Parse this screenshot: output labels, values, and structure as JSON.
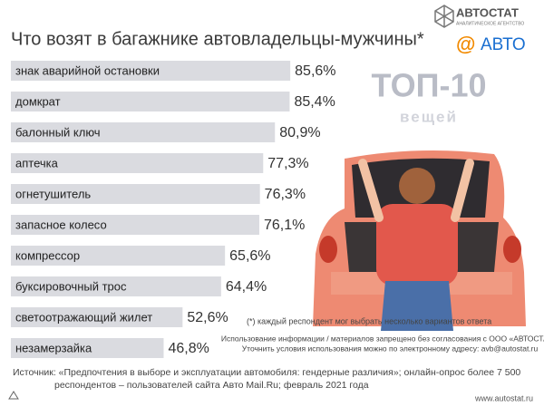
{
  "chart_data": {
    "type": "bar",
    "title": "Что возят в багажнике автовладельцы-мужчины*",
    "categories": [
      "знак аварийной остановки",
      "домкрат",
      "балонный ключ",
      "аптечка",
      "огнетушитель",
      "запасное колесо",
      "компрессор",
      "буксировочный трос",
      "светоотражающий жилет",
      "незамерзайка"
    ],
    "values": [
      85.6,
      85.4,
      80.9,
      77.3,
      76.3,
      76.1,
      65.6,
      64.4,
      52.6,
      46.8
    ],
    "value_labels": [
      "85,6%",
      "85,4%",
      "80,9%",
      "77,3%",
      "76,3%",
      "76,1%",
      "65,6%",
      "64,4%",
      "52,6%",
      "46,8%"
    ],
    "color": "#dadbe0",
    "brand": "АВТОСТАТ",
    "brand_sub": "АНАЛИТИЧЕСКОЕ АГЕНТСТВО",
    "partner": "АВТО",
    "badge": "ТОП-10",
    "badge_sub": "вещей",
    "footnote": "(*) каждый респондент мог выбрать несколько вариантов ответа",
    "notice": [
      "Использование информации / материалов запрещено без согласования с ООО «АВТОСТАТ».",
      "Уточнить условия использования можно по электронному адресу: avb@autostat.ru"
    ],
    "source": [
      "Источник: «Предпочтения в выборе и эксплуатации автомобиля: гендерные различия»; онлайн-опрос более 7 500",
      "респондентов – пользователей сайта Авто Mail.Ru; февраль 2021 года"
    ],
    "url": "www.autostat.ru"
  }
}
